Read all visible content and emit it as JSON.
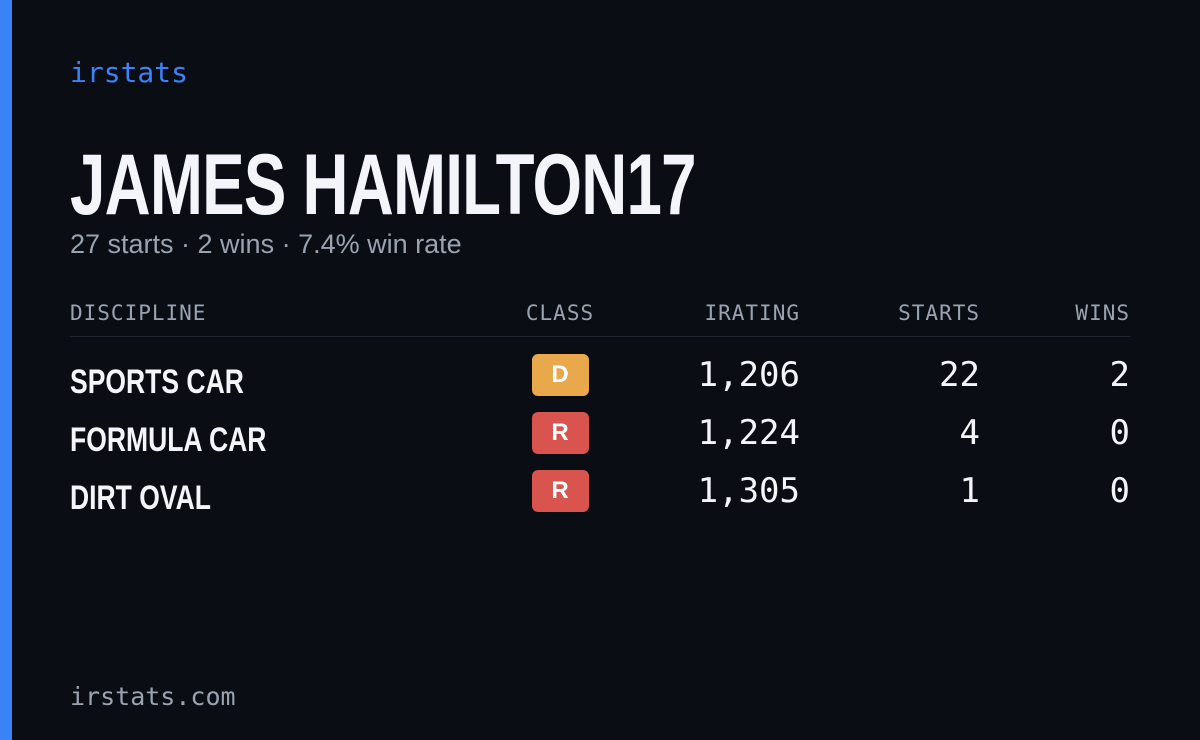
{
  "brand": "irstats",
  "profile": {
    "name": "JAMES HAMILTON17",
    "summary": "27 starts · 2 wins · 7.4% win rate"
  },
  "table": {
    "headers": [
      "DISCIPLINE",
      "CLASS",
      "IRATING",
      "STARTS",
      "WINS"
    ],
    "rows": [
      {
        "discipline": "SPORTS CAR",
        "class": "D",
        "class_color": "#eaa84c",
        "irating": "1,206",
        "starts": "22",
        "wins": "2"
      },
      {
        "discipline": "FORMULA CAR",
        "class": "R",
        "class_color": "#d9534f",
        "irating": "1,224",
        "starts": "4",
        "wins": "0"
      },
      {
        "discipline": "DIRT OVAL",
        "class": "R",
        "class_color": "#d9534f",
        "irating": "1,305",
        "starts": "1",
        "wins": "0"
      }
    ]
  },
  "footer": "irstats.com"
}
